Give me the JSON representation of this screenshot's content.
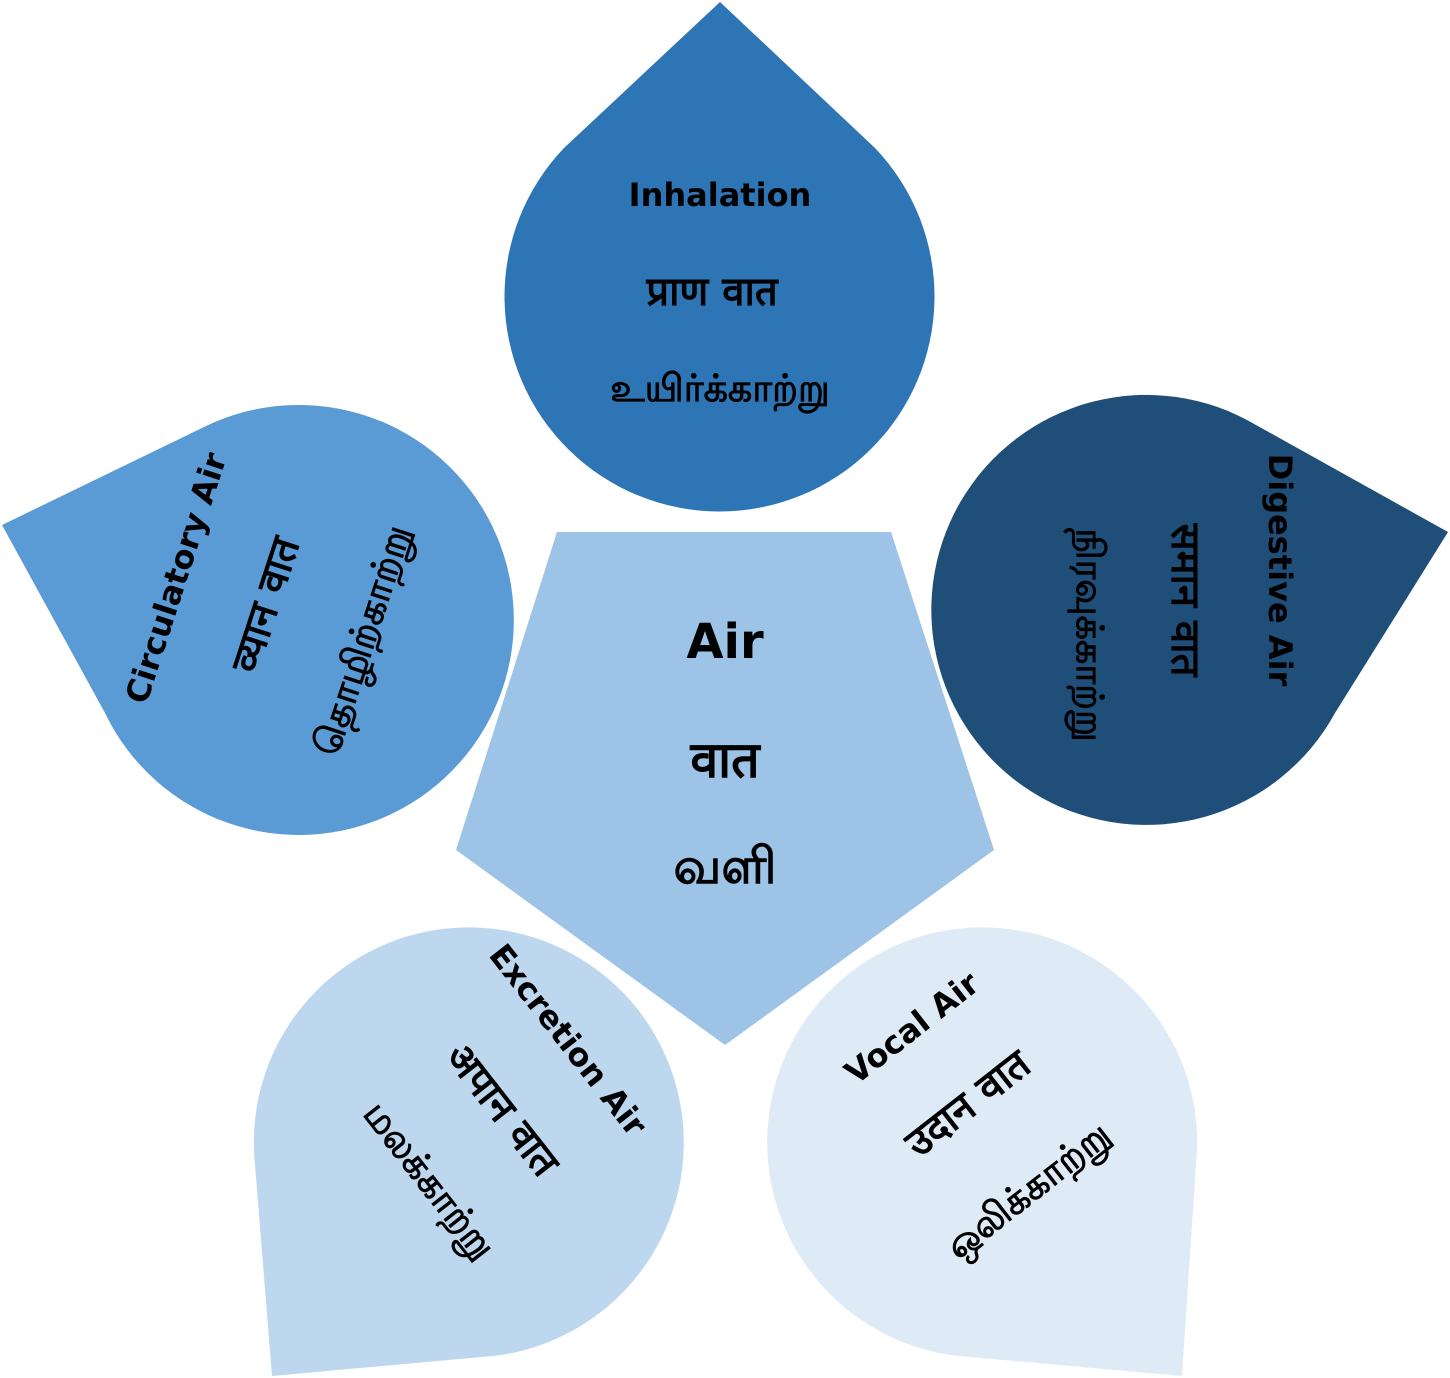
{
  "center": {
    "english": "Air",
    "sanskrit": "वात",
    "tamil": "வளி",
    "color": "#9DC3E6"
  },
  "petals": [
    {
      "id": "inhalation",
      "english": "Inhalation",
      "sanskrit": "प्राण वात",
      "tamil": "உயிர்க்காற்று",
      "color": "#2E75B6"
    },
    {
      "id": "digestive",
      "english": "Digestive Air",
      "sanskrit": "समान वात",
      "tamil": "நிரவுக்காற்று",
      "color": "#1F4E79"
    },
    {
      "id": "vocal",
      "english": "Vocal Air",
      "sanskrit": "उदान वात",
      "tamil": "ஒலிக்காற்று",
      "color": "#DEEBF7"
    },
    {
      "id": "excretion",
      "english": "Excretion Air",
      "sanskrit": "अपान वात",
      "tamil": "மலக்காற்று",
      "color": "#BDD7EE"
    },
    {
      "id": "circulatory",
      "english": "Circulatory Air",
      "sanskrit": "व्यान वात",
      "tamil": "தொழிற்காற்று",
      "color": "#5B9BD5"
    }
  ]
}
